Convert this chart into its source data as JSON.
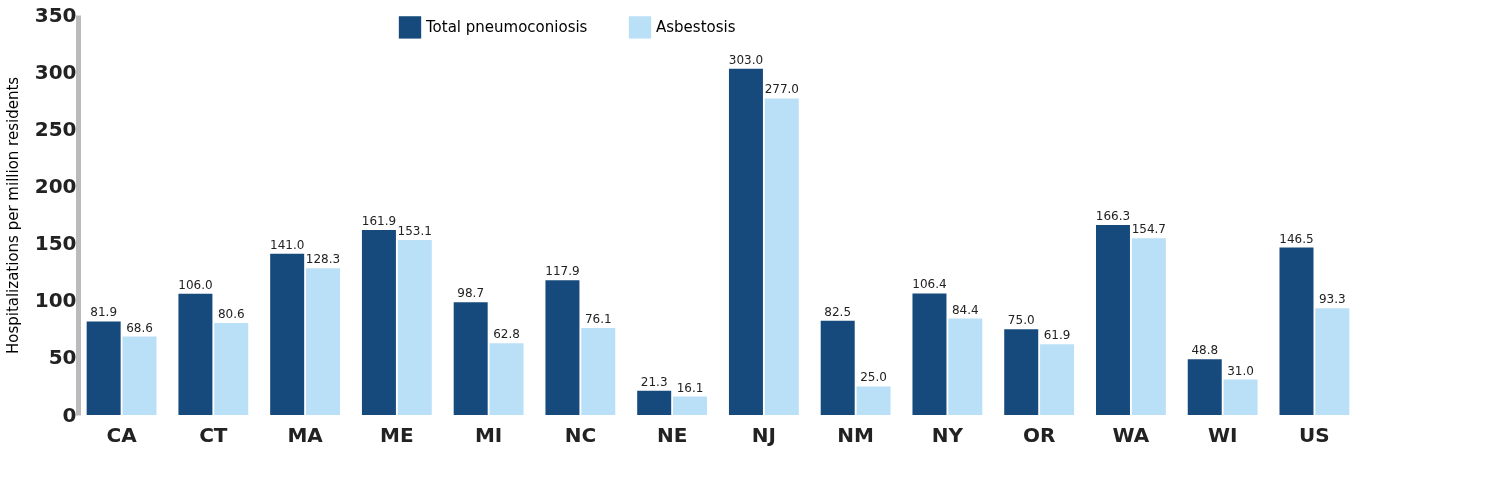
{
  "chart_data": {
    "type": "bar",
    "ylabel": "Hospitalizations per million residents",
    "categories": [
      "CA",
      "CT",
      "MA",
      "ME",
      "MI",
      "NC",
      "NE",
      "NJ",
      "NM",
      "NY",
      "OR",
      "WA",
      "WI",
      "US"
    ],
    "series": [
      {
        "name": "Total pneumoconiosis",
        "color": "#174a7c",
        "values": [
          81.9,
          106.0,
          141.0,
          161.9,
          98.7,
          117.9,
          21.3,
          303.0,
          82.5,
          106.4,
          75.0,
          166.3,
          48.8,
          146.5
        ],
        "value_labels": [
          "81.9",
          "106.0",
          "141.0",
          "161.9",
          "98.7",
          "117.9",
          "21.3",
          "303.0",
          "82.5",
          "106.4",
          "75.0",
          "166.3",
          "48.8",
          "146.5"
        ]
      },
      {
        "name": "Asbestosis",
        "color": "#b9e0f6",
        "values": [
          68.6,
          80.6,
          128.3,
          153.1,
          62.8,
          76.1,
          16.1,
          277.0,
          25.0,
          84.4,
          61.9,
          154.7,
          31.0,
          93.3
        ],
        "value_labels": [
          "68.6",
          "80.6",
          "128.3",
          "153.1",
          "62.8",
          "76.1",
          "16.1",
          "277.0",
          "25.0",
          "84.4",
          "61.9",
          "154.7",
          "31.0",
          "93.3"
        ]
      }
    ],
    "ylim": [
      0,
      350
    ],
    "yticks": [
      0,
      50,
      100,
      150,
      200,
      250,
      300,
      350
    ],
    "grid": false,
    "legend": "top left"
  }
}
